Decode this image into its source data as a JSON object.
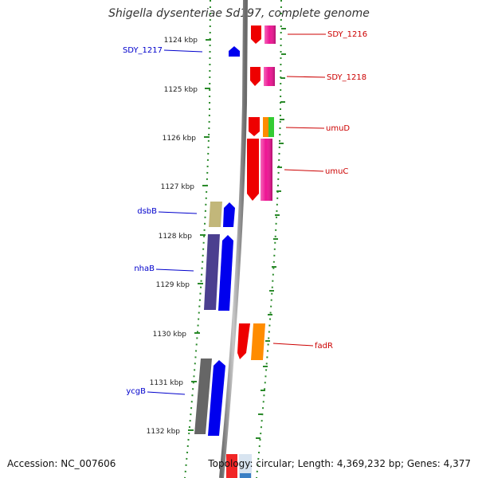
{
  "title": "Shigella dysenteriae Sd197, complete genome",
  "footer": {
    "accession": "Accession: NC_007606",
    "summary": "Topology: circular; Length: 4,369,232 bp; Genes: 4,377"
  },
  "colors": {
    "backbone": "#8c8c8c",
    "tick": "#2a8a2a",
    "left_label": "#0000cc",
    "right_label": "#cc0000"
  },
  "scale_labels": [
    "1124 kbp",
    "1125 kbp",
    "1126 kbp",
    "1127 kbp",
    "1128 kbp",
    "1129 kbp",
    "1130 kbp",
    "1131 kbp",
    "1132 kbp"
  ],
  "left_genes": [
    {
      "label": "SDY_1217",
      "color": "#0000ee"
    },
    {
      "label": "dsbB",
      "color": "#c2b77a"
    },
    {
      "label": "dsbB",
      "color": "#0000ee"
    },
    {
      "label": "nhaB",
      "color": "#4b3f8f"
    },
    {
      "label": "nhaB",
      "color": "#0000ee"
    },
    {
      "label": "ycgB",
      "color": "#666666"
    },
    {
      "label": "ycgB",
      "color": "#0000ee"
    }
  ],
  "right_genes": [
    {
      "label": "SDY_1216",
      "color": "#ee0000"
    },
    {
      "label": "SDY_1216",
      "color": "#ee1493"
    },
    {
      "label": "SDY_1218",
      "color": "#ee0000"
    },
    {
      "label": "SDY_1218",
      "color": "#ee1493"
    },
    {
      "label": "umuD",
      "color": "#ee0000"
    },
    {
      "label": "umuD",
      "color": "#ff8c00"
    },
    {
      "label": "umuD",
      "color": "#33cc33"
    },
    {
      "label": "umuC",
      "color": "#ee0000"
    },
    {
      "label": "umuC",
      "color": "#ee1493"
    },
    {
      "label": "fadR",
      "color": "#ee0000"
    },
    {
      "label": "fadR",
      "color": "#ff8c00"
    }
  ],
  "gene_labels": {
    "left": [
      "SDY_1217",
      "dsbB",
      "nhaB",
      "ycgB"
    ],
    "right": [
      "SDY_1216",
      "SDY_1218",
      "umuD",
      "umuC",
      "fadR"
    ]
  }
}
